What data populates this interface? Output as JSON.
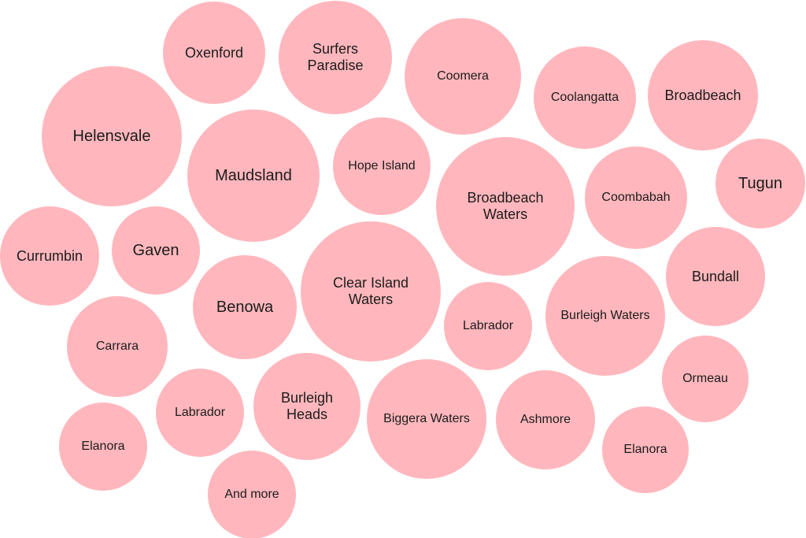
{
  "bubbles": [
    {
      "label": "Oxenford"
    },
    {
      "label": "Surfers Paradise"
    },
    {
      "label": "Coomera"
    },
    {
      "label": "Coolangatta"
    },
    {
      "label": "Broadbeach"
    },
    {
      "label": "Helensvale"
    },
    {
      "label": "Maudsland"
    },
    {
      "label": "Hope Island"
    },
    {
      "label": "Broadbeach Waters"
    },
    {
      "label": "Coombabah"
    },
    {
      "label": "Tugun"
    },
    {
      "label": "Currumbin"
    },
    {
      "label": "Gaven"
    },
    {
      "label": "Benowa"
    },
    {
      "label": "Clear Island Waters"
    },
    {
      "label": "Labrador"
    },
    {
      "label": "Burleigh Waters"
    },
    {
      "label": "Bundall"
    },
    {
      "label": "Carrara"
    },
    {
      "label": "Ormeau"
    },
    {
      "label": "Labrador"
    },
    {
      "label": "Burleigh Heads"
    },
    {
      "label": "Biggera Waters"
    },
    {
      "label": "Ashmore"
    },
    {
      "label": "Elanora"
    },
    {
      "label": "Elanora"
    },
    {
      "label": "And more"
    }
  ]
}
